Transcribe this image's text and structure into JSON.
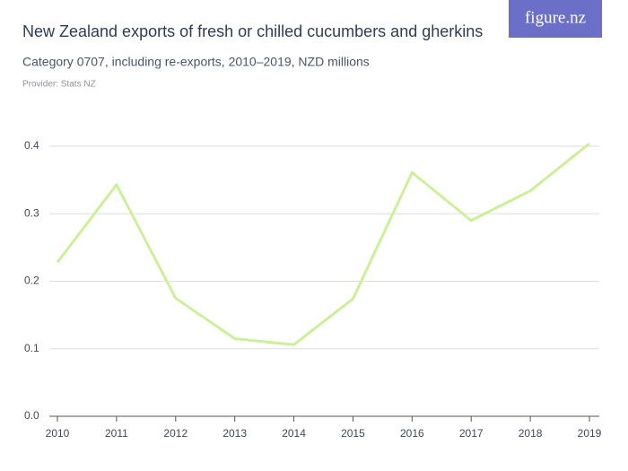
{
  "chart_data": {
    "type": "line",
    "title": "New Zealand exports of fresh or chilled cucumbers and gherkins",
    "subtitle": "Category 0707, including re-exports, 2010–2019, NZD millions",
    "source": "Provider: Stats NZ",
    "logo": "figure.nz",
    "categories": [
      "2010",
      "2011",
      "2012",
      "2013",
      "2014",
      "2015",
      "2016",
      "2017",
      "2018",
      "2019"
    ],
    "series": [
      {
        "name": "Exports",
        "color": "#ccf09a",
        "values": [
          0.228,
          0.343,
          0.175,
          0.115,
          0.106,
          0.174,
          0.361,
          0.29,
          0.334,
          0.404
        ]
      }
    ],
    "ylim": [
      0,
      0.4
    ],
    "yticks": [
      {
        "value": 0,
        "label": "0.0"
      },
      0.1,
      0.2,
      0.3,
      0.4
    ],
    "grid": true
  }
}
